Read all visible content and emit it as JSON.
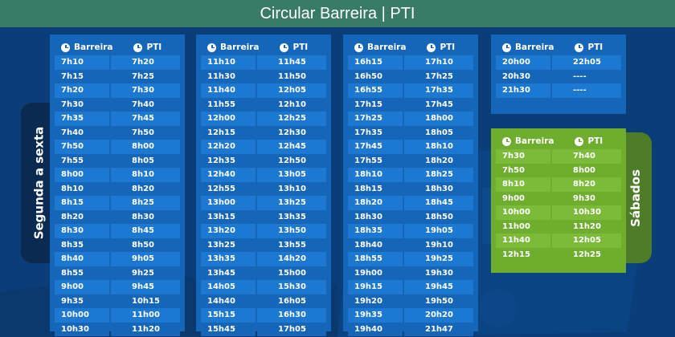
{
  "header": {
    "title": "Circular Barreira | PTI"
  },
  "side_labels": {
    "weekday": "Segunda a sexta",
    "saturday": "Sábados"
  },
  "columns": {
    "origin": "Barreira",
    "destination": "PTI"
  },
  "colors": {
    "background": "#0b3d78",
    "header": "#3a7a68",
    "weekday_panel": "#1565b8",
    "saturday_panel": "#6fad2f"
  },
  "icons": {
    "column_icon": "clock-icon"
  },
  "weekday_panels": [
    {
      "rows": [
        [
          "7h10",
          "7h20"
        ],
        [
          "7h15",
          "7h25"
        ],
        [
          "7h20",
          "7h30"
        ],
        [
          "7h30",
          "7h40"
        ],
        [
          "7h35",
          "7h45"
        ],
        [
          "7h40",
          "7h50"
        ],
        [
          "7h50",
          "8h00"
        ],
        [
          "7h55",
          "8h05"
        ],
        [
          "8h00",
          "8h10"
        ],
        [
          "8h10",
          "8h20"
        ],
        [
          "8h15",
          "8h25"
        ],
        [
          "8h20",
          "8h30"
        ],
        [
          "8h30",
          "8h45"
        ],
        [
          "8h35",
          "8h50"
        ],
        [
          "8h40",
          "9h05"
        ],
        [
          "8h55",
          "9h25"
        ],
        [
          "9h00",
          "9h45"
        ],
        [
          "9h35",
          "10h15"
        ],
        [
          "10h00",
          "11h00"
        ],
        [
          "10h30",
          "11h20"
        ]
      ]
    },
    {
      "rows": [
        [
          "11h10",
          "11h45"
        ],
        [
          "11h30",
          "11h50"
        ],
        [
          "11h40",
          "12h05"
        ],
        [
          "11h55",
          "12h10"
        ],
        [
          "12h00",
          "12h25"
        ],
        [
          "12h15",
          "12h30"
        ],
        [
          "12h20",
          "12h45"
        ],
        [
          "12h35",
          "12h50"
        ],
        [
          "12h40",
          "13h05"
        ],
        [
          "12h55",
          "13h10"
        ],
        [
          "13h00",
          "13h25"
        ],
        [
          "13h15",
          "13h35"
        ],
        [
          "13h20",
          "13h50"
        ],
        [
          "13h25",
          "13h55"
        ],
        [
          "13h35",
          "14h20"
        ],
        [
          "13h45",
          "15h00"
        ],
        [
          "14h05",
          "15h30"
        ],
        [
          "14h40",
          "16h05"
        ],
        [
          "15h15",
          "16h30"
        ],
        [
          "15h45",
          "17h05"
        ]
      ]
    },
    {
      "rows": [
        [
          "16h15",
          "17h10"
        ],
        [
          "16h50",
          "17h25"
        ],
        [
          "16h55",
          "17h35"
        ],
        [
          "17h15",
          "17h45"
        ],
        [
          "17h25",
          "18h00"
        ],
        [
          "17h35",
          "18h05"
        ],
        [
          "17h45",
          "18h10"
        ],
        [
          "17h55",
          "18h20"
        ],
        [
          "18h10",
          "18h25"
        ],
        [
          "18h15",
          "18h30"
        ],
        [
          "18h20",
          "18h45"
        ],
        [
          "18h30",
          "18h50"
        ],
        [
          "18h35",
          "19h05"
        ],
        [
          "18h40",
          "19h10"
        ],
        [
          "18h55",
          "19h25"
        ],
        [
          "19h00",
          "19h30"
        ],
        [
          "19h15",
          "19h45"
        ],
        [
          "19h20",
          "19h50"
        ],
        [
          "19h35",
          "20h20"
        ],
        [
          "19h40",
          "21h47"
        ]
      ]
    },
    {
      "rows": [
        [
          "20h00",
          "22h05"
        ],
        [
          "20h30",
          "----"
        ],
        [
          "21h30",
          "----"
        ]
      ]
    }
  ],
  "saturday_panel": {
    "rows": [
      [
        "7h30",
        "7h40"
      ],
      [
        "7h50",
        "8h00"
      ],
      [
        "8h10",
        "8h20"
      ],
      [
        "9h00",
        "9h30"
      ],
      [
        "10h00",
        "10h30"
      ],
      [
        "11h00",
        "11h20"
      ],
      [
        "11h40",
        "12h05"
      ],
      [
        "12h15",
        "12h25"
      ]
    ]
  }
}
